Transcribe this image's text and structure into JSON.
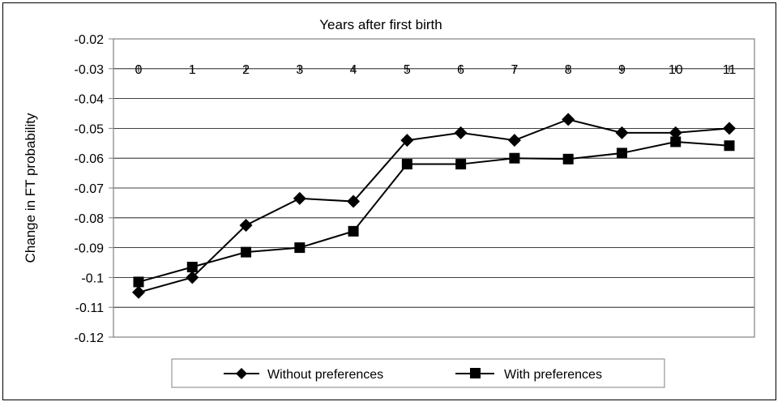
{
  "chart_data": {
    "type": "line",
    "xlabel": "Years after first birth",
    "ylabel": "Change in FT probability",
    "categories": [
      "0",
      "1",
      "2",
      "3",
      "4",
      "5",
      "6",
      "7",
      "8",
      "9",
      "10",
      "11"
    ],
    "ylim": [
      -0.12,
      -0.02
    ],
    "yticks": [
      "-0.02",
      "-0.03",
      "-0.04",
      "-0.05",
      "-0.06",
      "-0.07",
      "-0.08",
      "-0.09",
      "-0.1",
      "-0.11",
      "-0.12"
    ],
    "grid": true,
    "legend_position": "bottom",
    "series": [
      {
        "name": "Without preferences",
        "marker": "diamond",
        "color": "#000000",
        "values": [
          -0.105,
          -0.1,
          -0.0825,
          -0.0735,
          -0.0745,
          -0.054,
          -0.0515,
          -0.054,
          -0.047,
          -0.0515,
          -0.0515,
          -0.05
        ]
      },
      {
        "name": "With preferences",
        "marker": "square",
        "color": "#000000",
        "values": [
          -0.1015,
          -0.0965,
          -0.0915,
          -0.09,
          -0.0845,
          -0.062,
          -0.062,
          -0.06,
          -0.0603,
          -0.0583,
          -0.0545,
          -0.0558
        ]
      }
    ]
  }
}
